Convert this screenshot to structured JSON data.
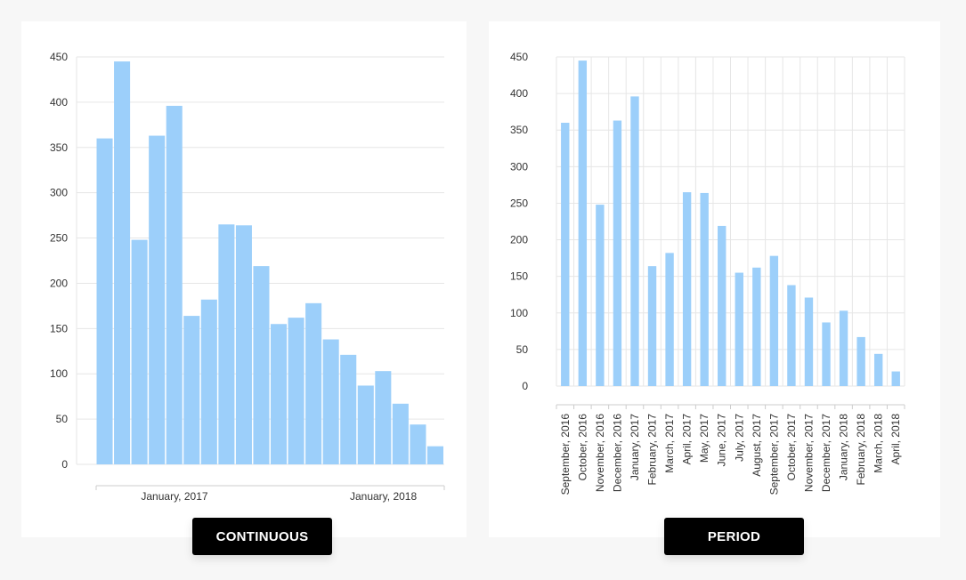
{
  "colors": {
    "bar": "#9ccffa",
    "grid": "#e6e6e6",
    "axis": "#cccccc",
    "text": "#333333",
    "button_bg": "#000000",
    "button_text": "#ffffff"
  },
  "buttons": {
    "continuous": "CONTINUOUS",
    "period": "PERIOD"
  },
  "chart_data": [
    {
      "type": "bar",
      "id": "continuous",
      "x_axis": "continuous-time",
      "ylim": [
        0,
        450
      ],
      "yticks": [
        "0",
        "50",
        "100",
        "150",
        "200",
        "250",
        "300",
        "350",
        "400",
        "450"
      ],
      "xtick_labels": [
        "January, 2017",
        "January, 2018"
      ],
      "categories": [
        "September, 2016",
        "October, 2016",
        "November, 2016",
        "December, 2016",
        "January, 2017",
        "February, 2017",
        "March, 2017",
        "April, 2017",
        "May, 2017",
        "June, 2017",
        "July, 2017",
        "August, 2017",
        "September, 2017",
        "October, 2017",
        "November, 2017",
        "December, 2017",
        "January, 2018",
        "February, 2018",
        "March, 2018",
        "April, 2018"
      ],
      "values": [
        360,
        445,
        248,
        363,
        396,
        164,
        182,
        265,
        264,
        219,
        155,
        162,
        178,
        138,
        121,
        87,
        103,
        67,
        44,
        20
      ],
      "grid": true,
      "legend": "none"
    },
    {
      "type": "bar",
      "id": "period",
      "x_axis": "category",
      "ylim": [
        0,
        450
      ],
      "yticks": [
        "0",
        "50",
        "100",
        "150",
        "200",
        "250",
        "300",
        "350",
        "400",
        "450"
      ],
      "categories": [
        "September, 2016",
        "October, 2016",
        "November, 2016",
        "December, 2016",
        "January, 2017",
        "February, 2017",
        "March, 2017",
        "April, 2017",
        "May, 2017",
        "June, 2017",
        "July, 2017",
        "August, 2017",
        "September, 2017",
        "October, 2017",
        "November, 2017",
        "December, 2017",
        "January, 2018",
        "February, 2018",
        "March, 2018",
        "April, 2018"
      ],
      "values": [
        360,
        445,
        248,
        363,
        396,
        164,
        182,
        265,
        264,
        219,
        155,
        162,
        178,
        138,
        121,
        87,
        103,
        67,
        44,
        20
      ],
      "grid": true,
      "legend": "none"
    }
  ]
}
